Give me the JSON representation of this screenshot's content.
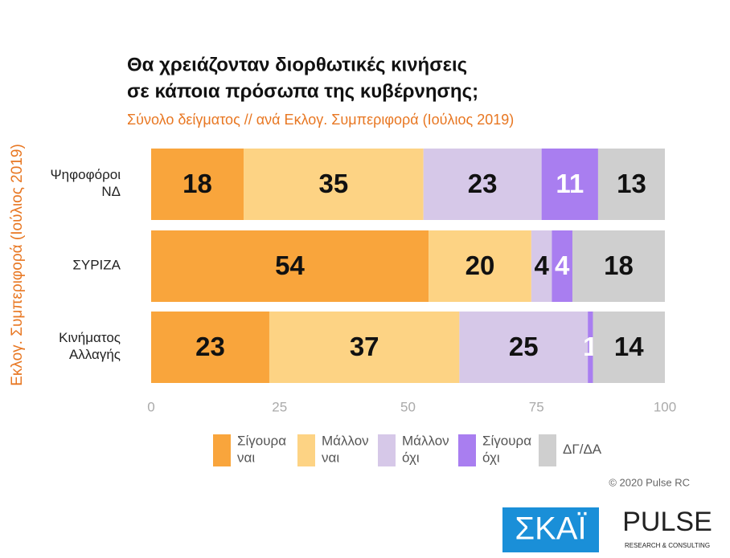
{
  "chart_data": {
    "type": "stacked-bar-horizontal",
    "title": [
      "Θα χρειάζονταν διορθωτικές κινήσεις",
      "σε κάποια πρόσωπα της κυβέρνησης;"
    ],
    "subtitle": "Σύνολο δείγματος // ανά Εκλογ. Συμπεριφορά (Ιούλιος 2019)",
    "y_label": "Εκλογ. Συμπεριφορά (Ιούλιος 2019)",
    "categories": [
      "Ψηφοφόροι ΝΔ",
      "ΣΥΡΙΖΑ",
      "Κινήματος Αλλαγής"
    ],
    "series": [
      {
        "name": "Σίγουρα ναι",
        "color": "#f9a53c",
        "values": [
          18,
          54,
          23
        ]
      },
      {
        "name": "Μάλλον ναι",
        "color": "#fdd384",
        "values": [
          35,
          20,
          37
        ]
      },
      {
        "name": "Μάλλον όχι",
        "color": "#d6c8e8",
        "values": [
          23,
          4,
          25
        ]
      },
      {
        "name": "Σίγουρα όχι",
        "color": "#a97ef0",
        "values": [
          11,
          4,
          1
        ]
      },
      {
        "name": "ΔΓ/ΔΑ",
        "color": "#cfcfcf",
        "values": [
          13,
          18,
          14
        ]
      }
    ],
    "xlim": [
      0,
      100
    ],
    "xticks": [
      0,
      25,
      50,
      75,
      100
    ],
    "legend": "bottom"
  },
  "footer": {
    "copyright": "© 2020 Pulse RC",
    "logo_left": "ΣΚΑΪ",
    "logo_right": "PULSE",
    "logo_right_sub": "RESEARCH & CONSULTING"
  }
}
